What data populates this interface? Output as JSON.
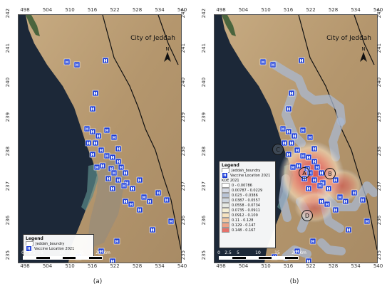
{
  "panels": [
    {
      "id": "a",
      "caption": "(a)",
      "city_label": "City of Jeddah",
      "north_label": "N",
      "legend": {
        "title": "Legend",
        "items": [
          {
            "label": "Jeddah_boundry",
            "swatch": "#ffffff"
          },
          {
            "label": "Vaccine Location 2021",
            "icon": "hospital-icon"
          }
        ]
      }
    },
    {
      "id": "b",
      "caption": "(b)",
      "city_label": "City of Jeddah",
      "north_label": "N",
      "zones": [
        "A",
        "B",
        "C",
        "D"
      ],
      "legend": {
        "title": "Legend",
        "items": [
          {
            "label": "Jeddah_boundry",
            "swatch": "#ffffff"
          },
          {
            "label": "Vaccine Location 2021",
            "icon": "hospital-icon"
          }
        ],
        "kde_title": "KDE 2021",
        "kde_classes": [
          {
            "label": "0 - 0.00786",
            "color": "#ffffff"
          },
          {
            "label": "0.00787 - 0.0229",
            "color": "#d6dbe6"
          },
          {
            "label": "0.023 - 0.0386",
            "color": "#b9c4d6"
          },
          {
            "label": "0.0387 - 0.0557",
            "color": "#cfd7df"
          },
          {
            "label": "0.0558 - 0.0734",
            "color": "#e6e9e3"
          },
          {
            "label": "0.0735 - 0.0911",
            "color": "#f4efd5"
          },
          {
            "label": "0.0912 - 0.109",
            "color": "#f6e3c0"
          },
          {
            "label": "0.11 - 0.128",
            "color": "#f3c8a3"
          },
          {
            "label": "0.129 - 0.147",
            "color": "#eea287"
          },
          {
            "label": "0.148 - 0.167",
            "color": "#e5716a"
          }
        ]
      }
    }
  ],
  "axes": {
    "x_ticks": [
      "498",
      "504",
      "510",
      "516",
      "522",
      "528",
      "534",
      "540"
    ],
    "y_ticks": [
      "242",
      "241",
      "240",
      "239",
      "238",
      "237",
      "236",
      "235"
    ]
  },
  "scale_bar": {
    "labels": [
      "0",
      "2.5",
      "5",
      "10",
      "15",
      "20"
    ],
    "unit": "Km"
  },
  "marker_glyph": "H",
  "colors": {
    "land": "#b79a73",
    "sea": "#1c2838",
    "marker": "#1a3bd6",
    "kde_hot": "#e05a55",
    "kde_cool": "#9fb0c9"
  }
}
